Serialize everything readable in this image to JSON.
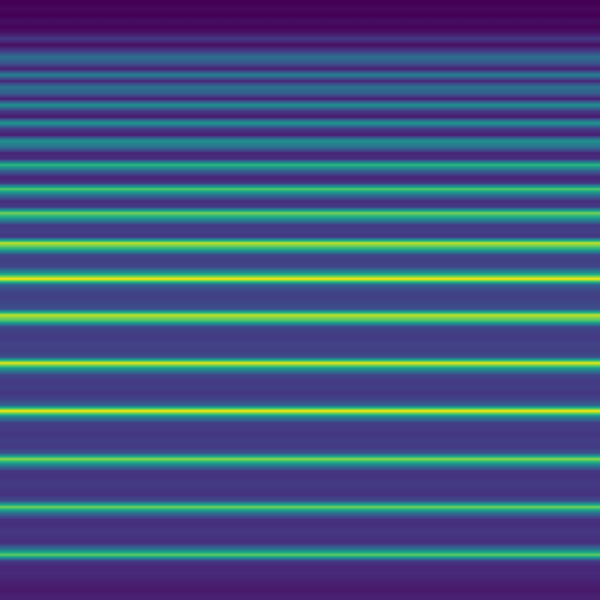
{
  "chart_data": {
    "type": "heatmap",
    "color": "viridis",
    "tick_labels": false,
    "cells": [
      [
        0.22
      ],
      [
        0.24
      ],
      [
        0.22
      ],
      [
        0.25
      ],
      [
        0.23
      ],
      [
        0.26
      ],
      [
        0.35
      ],
      [
        0.25
      ],
      [
        0.35
      ],
      [
        0.5
      ],
      [
        0.42
      ],
      [
        0.28
      ],
      [
        0.55
      ],
      [
        0.3
      ],
      [
        0.5
      ],
      [
        0.45
      ],
      [
        0.28
      ],
      [
        0.6
      ],
      [
        0.35
      ],
      [
        0.27
      ],
      [
        0.62
      ],
      [
        0.35
      ],
      [
        0.28
      ],
      [
        0.6
      ],
      [
        0.5
      ],
      [
        0.3
      ],
      [
        0.32
      ],
      [
        0.72
      ],
      [
        0.45
      ],
      [
        0.3
      ],
      [
        0.33
      ],
      [
        0.78
      ],
      [
        0.5
      ],
      [
        0.32
      ],
      [
        0.35
      ],
      [
        0.82
      ],
      [
        0.6
      ],
      [
        0.35
      ],
      [
        0.36
      ],
      [
        0.34
      ],
      [
        0.9
      ],
      [
        0.7
      ],
      [
        0.38
      ],
      [
        0.36
      ],
      [
        0.38
      ],
      [
        0.6
      ],
      [
        0.97
      ],
      [
        0.45
      ],
      [
        0.38
      ],
      [
        0.36
      ],
      [
        0.38
      ],
      [
        0.4
      ],
      [
        0.9
      ],
      [
        0.75
      ],
      [
        0.38
      ],
      [
        0.36
      ],
      [
        0.35
      ],
      [
        0.37
      ],
      [
        0.36
      ],
      [
        0.4
      ],
      [
        0.95
      ],
      [
        0.6
      ],
      [
        0.38
      ],
      [
        0.35
      ],
      [
        0.36
      ],
      [
        0.34
      ],
      [
        0.37
      ],
      [
        0.45
      ],
      [
        0.97
      ],
      [
        0.55
      ],
      [
        0.36
      ],
      [
        0.35
      ],
      [
        0.34
      ],
      [
        0.36
      ],
      [
        0.35
      ],
      [
        0.4
      ],
      [
        0.85
      ],
      [
        0.55
      ],
      [
        0.34
      ],
      [
        0.33
      ],
      [
        0.35
      ],
      [
        0.34
      ],
      [
        0.33
      ],
      [
        0.4
      ],
      [
        0.82
      ],
      [
        0.5
      ],
      [
        0.33
      ],
      [
        0.32
      ],
      [
        0.34
      ],
      [
        0.33
      ],
      [
        0.32
      ],
      [
        0.5
      ],
      [
        0.8
      ],
      [
        0.35
      ],
      [
        0.3
      ],
      [
        0.31
      ],
      [
        0.3
      ],
      [
        0.28
      ],
      [
        0.27
      ],
      [
        0.29
      ]
    ]
  }
}
